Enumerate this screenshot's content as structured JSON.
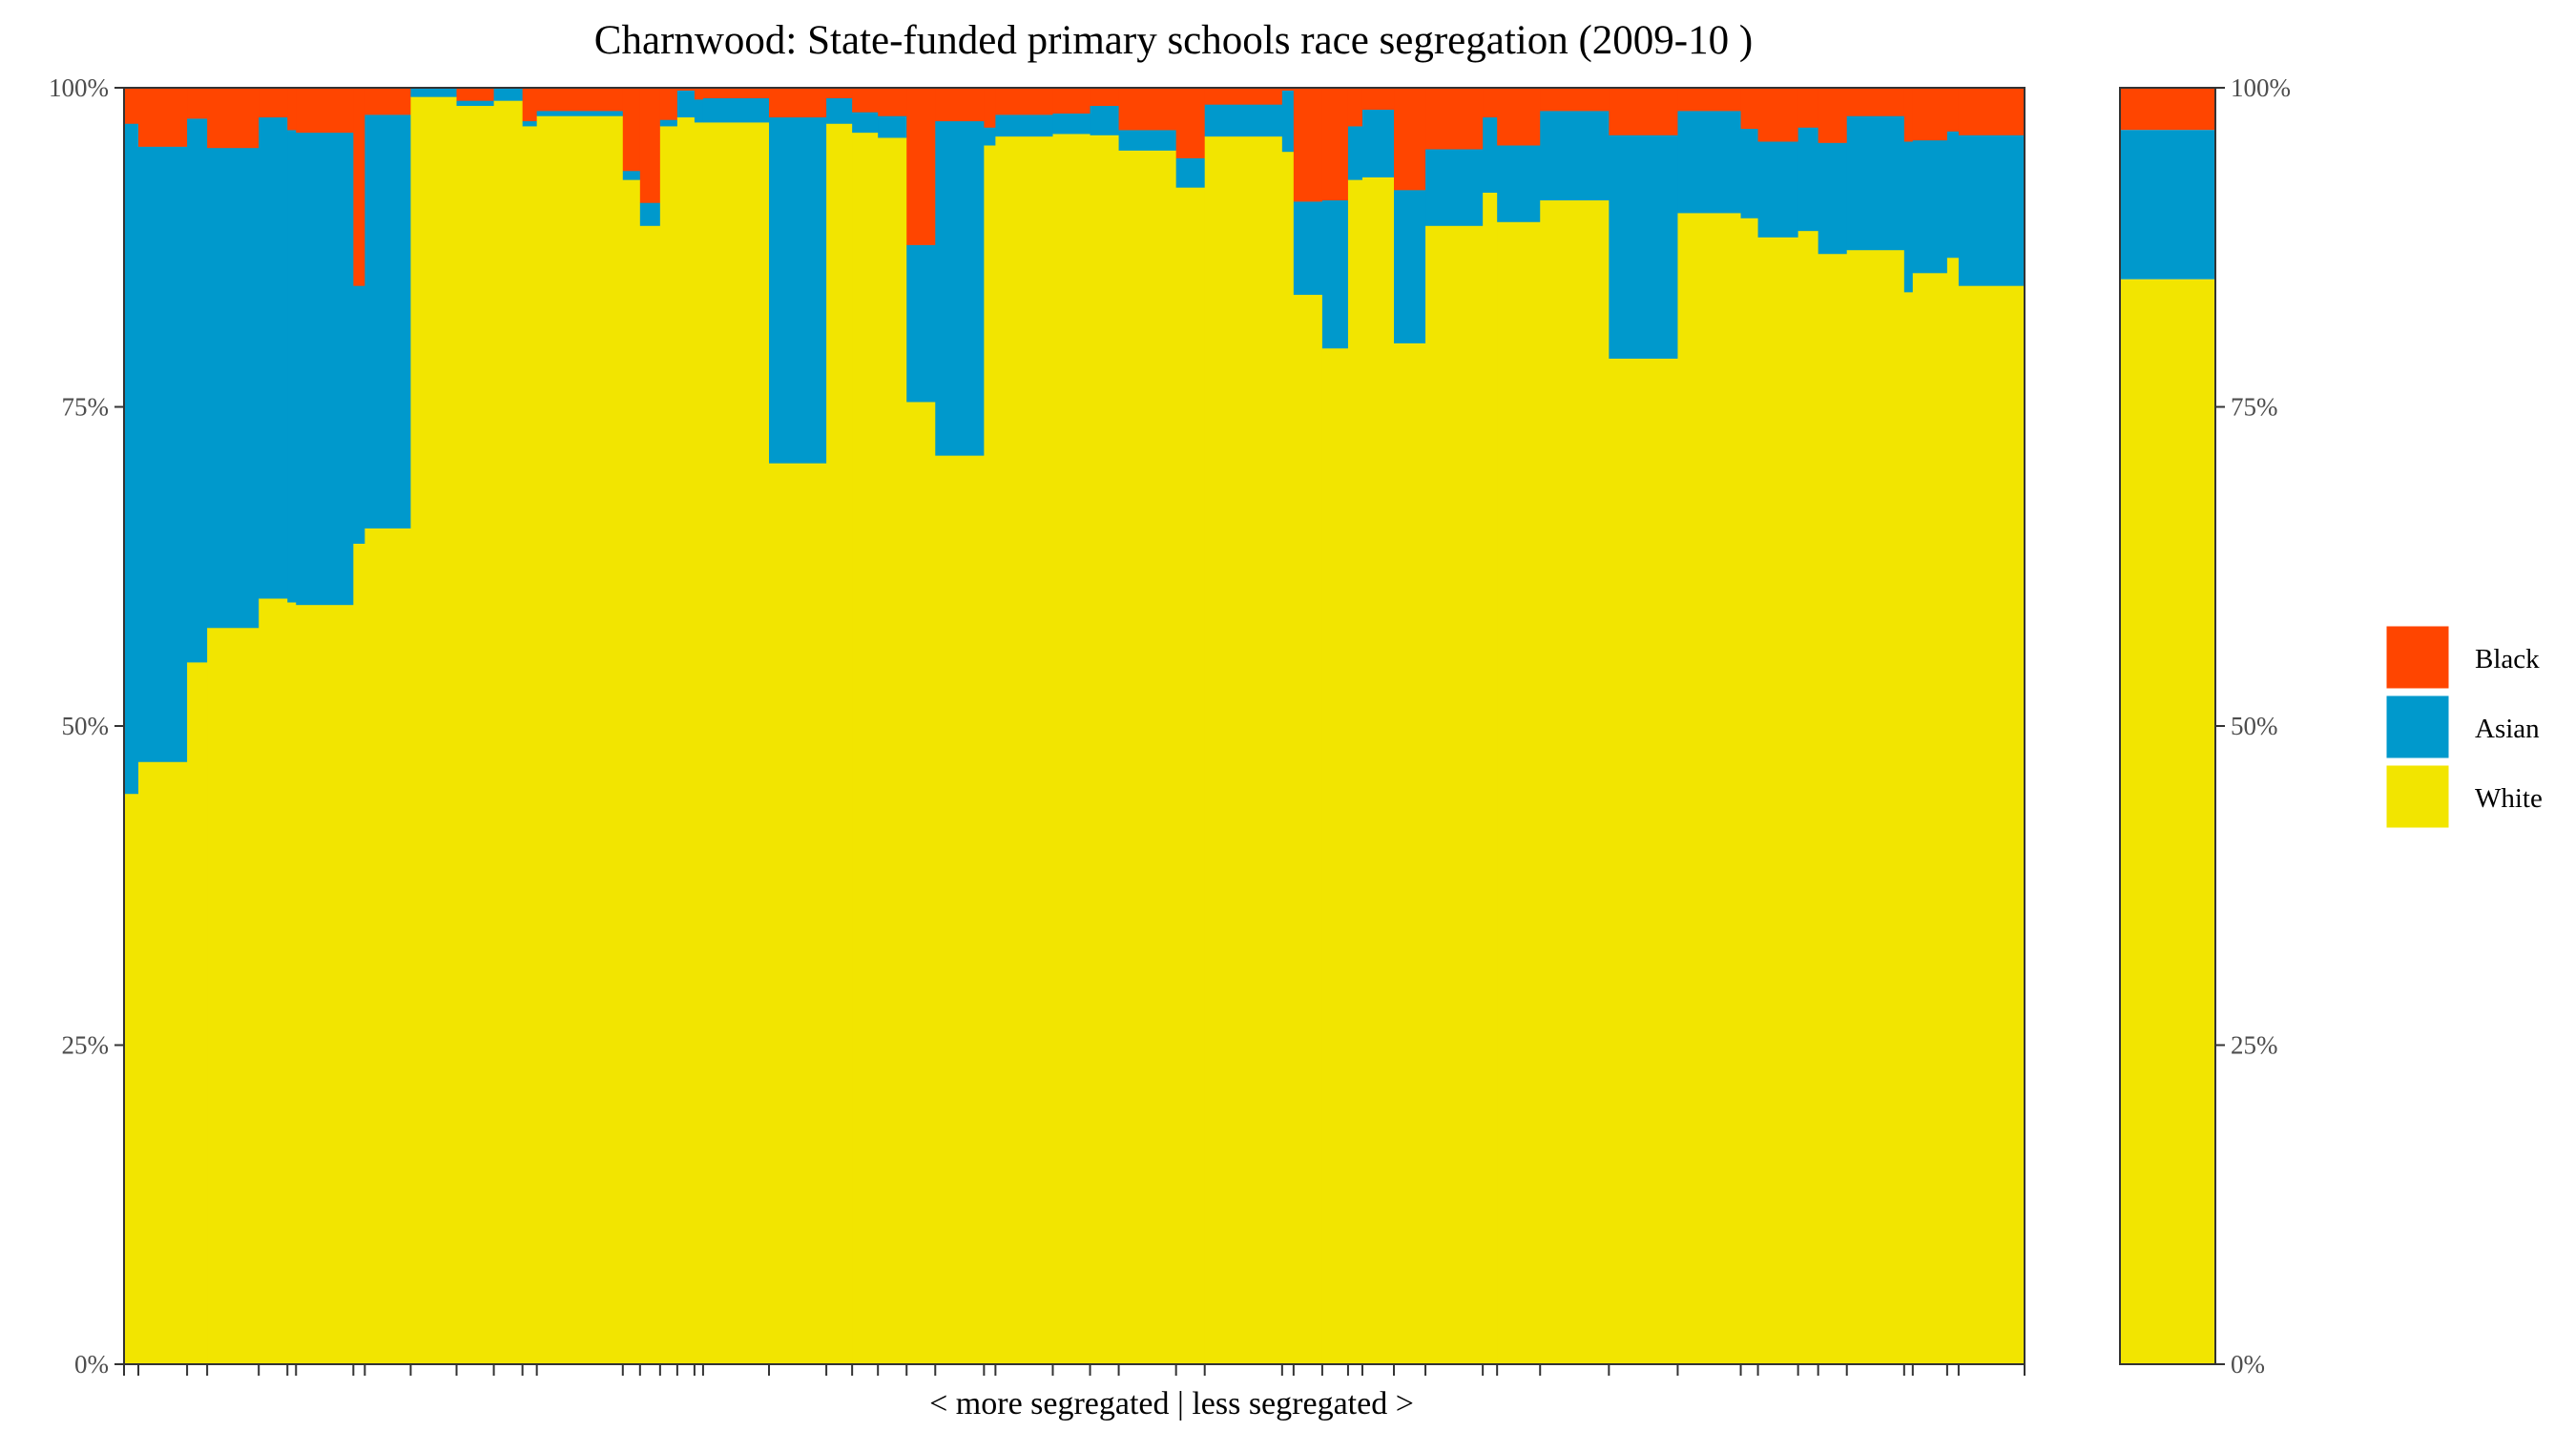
{
  "chart_data": {
    "type": "bar",
    "title": "Charnwood: State-funded primary schools race segregation (2009-10 )",
    "xlabel": "< more segregated | less segregated >",
    "ylabel": "",
    "ylim": [
      0,
      100
    ],
    "y_ticks": [
      "0%",
      "25%",
      "50%",
      "75%",
      "100%"
    ],
    "legend": {
      "placement": "right",
      "entries": [
        "Black",
        "Asian",
        "White"
      ]
    },
    "colors": {
      "Black": "#FF4500",
      "Asian": "#0099CC",
      "White": "#F2E500"
    },
    "schools": [
      {
        "w": 0.5,
        "white": 44.7,
        "asian": 52.5,
        "black": 2.8
      },
      {
        "w": 1.7,
        "white": 47.2,
        "asian": 48.2,
        "black": 4.6
      },
      {
        "w": 0.7,
        "white": 55.0,
        "asian": 42.6,
        "black": 2.4
      },
      {
        "w": 1.8,
        "white": 57.7,
        "asian": 37.6,
        "black": 4.7
      },
      {
        "w": 1.0,
        "white": 60.0,
        "asian": 37.7,
        "black": 2.3
      },
      {
        "w": 0.3,
        "white": 59.7,
        "asian": 37.0,
        "black": 3.3
      },
      {
        "w": 2.0,
        "white": 59.5,
        "asian": 37.0,
        "black": 3.5
      },
      {
        "w": 0.4,
        "white": 64.3,
        "asian": 20.2,
        "black": 15.5
      },
      {
        "w": 1.6,
        "white": 65.5,
        "asian": 32.4,
        "black": 2.1
      },
      {
        "w": 1.6,
        "white": 99.3,
        "asian": 0.7,
        "black": 0.0
      },
      {
        "w": 1.3,
        "white": 98.6,
        "asian": 0.4,
        "black": 1.0
      },
      {
        "w": 1.0,
        "white": 99.0,
        "asian": 1.0,
        "black": 0.0
      },
      {
        "w": 0.5,
        "white": 97.0,
        "asian": 0.4,
        "black": 2.6
      },
      {
        "w": 3.0,
        "white": 97.8,
        "asian": 0.4,
        "black": 1.8
      },
      {
        "w": 0.6,
        "white": 92.8,
        "asian": 0.7,
        "black": 6.5
      },
      {
        "w": 0.7,
        "white": 89.2,
        "asian": 1.8,
        "black": 9.0
      },
      {
        "w": 0.6,
        "white": 97.0,
        "asian": 0.5,
        "black": 2.5
      },
      {
        "w": 0.6,
        "white": 97.7,
        "asian": 2.1,
        "black": 0.2
      },
      {
        "w": 0.3,
        "white": 97.3,
        "asian": 1.8,
        "black": 0.9
      },
      {
        "w": 2.3,
        "white": 97.3,
        "asian": 1.9,
        "black": 0.8
      },
      {
        "w": 2.0,
        "white": 70.6,
        "asian": 27.1,
        "black": 2.3
      },
      {
        "w": 0.9,
        "white": 97.2,
        "asian": 2.0,
        "black": 0.8
      },
      {
        "w": 0.9,
        "white": 96.5,
        "asian": 1.6,
        "black": 1.9
      },
      {
        "w": 1.0,
        "white": 96.1,
        "asian": 1.7,
        "black": 2.2
      },
      {
        "w": 1.0,
        "white": 75.4,
        "asian": 12.3,
        "black": 12.3
      },
      {
        "w": 1.7,
        "white": 71.2,
        "asian": 26.2,
        "black": 2.6
      },
      {
        "w": 0.4,
        "white": 95.5,
        "asian": 1.4,
        "black": 3.1
      },
      {
        "w": 2.0,
        "white": 96.2,
        "asian": 1.7,
        "black": 2.1
      },
      {
        "w": 1.3,
        "white": 96.4,
        "asian": 1.6,
        "black": 2.0
      },
      {
        "w": 1.0,
        "white": 96.3,
        "asian": 2.3,
        "black": 1.4
      },
      {
        "w": 2.0,
        "white": 95.1,
        "asian": 1.6,
        "black": 3.3
      },
      {
        "w": 1.0,
        "white": 92.2,
        "asian": 2.3,
        "black": 5.5
      },
      {
        "w": 2.7,
        "white": 96.2,
        "asian": 2.5,
        "black": 1.3
      },
      {
        "w": 0.4,
        "white": 95.0,
        "asian": 4.8,
        "black": 0.2
      },
      {
        "w": 1.0,
        "white": 83.8,
        "asian": 7.3,
        "black": 8.9
      },
      {
        "w": 0.9,
        "white": 79.6,
        "asian": 11.6,
        "black": 8.8
      },
      {
        "w": 0.5,
        "white": 92.8,
        "asian": 4.2,
        "black": 3.0
      },
      {
        "w": 1.1,
        "white": 93.0,
        "asian": 5.3,
        "black": 1.7
      },
      {
        "w": 1.1,
        "white": 80.0,
        "asian": 12.0,
        "black": 8.0
      },
      {
        "w": 2.0,
        "white": 89.2,
        "asian": 6.0,
        "black": 4.8
      },
      {
        "w": 0.5,
        "white": 91.8,
        "asian": 5.9,
        "black": 2.3
      },
      {
        "w": 1.5,
        "white": 89.5,
        "asian": 6.0,
        "black": 4.5
      },
      {
        "w": 2.4,
        "white": 91.2,
        "asian": 7.0,
        "black": 1.8
      },
      {
        "w": 2.4,
        "white": 78.8,
        "asian": 17.5,
        "black": 3.7
      },
      {
        "w": 2.2,
        "white": 90.2,
        "asian": 8.0,
        "black": 1.8
      },
      {
        "w": 0.6,
        "white": 89.8,
        "asian": 7.0,
        "black": 3.2
      },
      {
        "w": 1.4,
        "white": 88.3,
        "asian": 7.5,
        "black": 4.2
      },
      {
        "w": 0.7,
        "white": 88.8,
        "asian": 8.1,
        "black": 3.1
      },
      {
        "w": 1.0,
        "white": 87.0,
        "asian": 8.7,
        "black": 4.3
      },
      {
        "w": 2.0,
        "white": 87.3,
        "asian": 10.5,
        "black": 2.2
      },
      {
        "w": 0.3,
        "white": 84.0,
        "asian": 11.8,
        "black": 4.2
      },
      {
        "w": 1.2,
        "white": 85.5,
        "asian": 10.4,
        "black": 4.1
      },
      {
        "w": 0.4,
        "white": 86.7,
        "asian": 9.9,
        "black": 3.4
      },
      {
        "w": 2.3,
        "white": 84.5,
        "asian": 11.8,
        "black": 3.7
      }
    ],
    "overall": {
      "white": 85.0,
      "asian": 11.7,
      "black": 3.3
    }
  }
}
